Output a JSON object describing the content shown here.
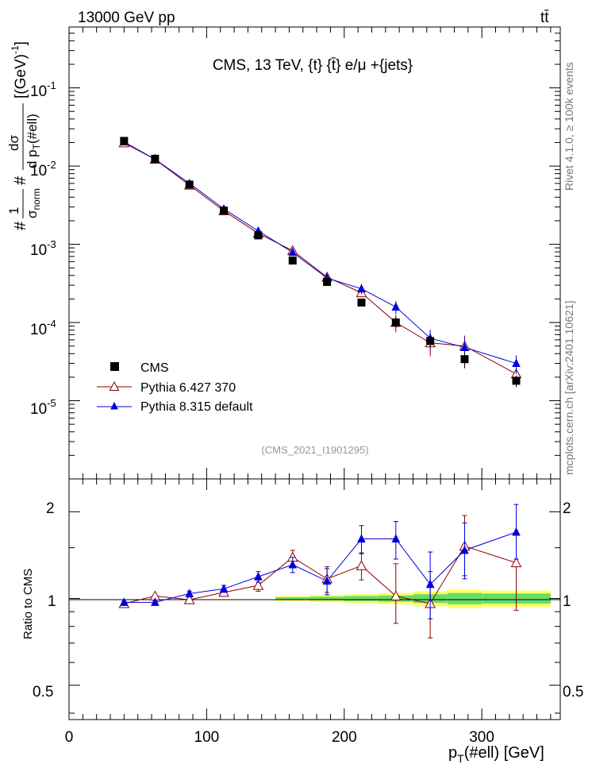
{
  "header": {
    "energy_label": "13000 GeV pp",
    "process_label": "tt̄"
  },
  "side_labels": {
    "rivet": "Rivet 4.1.0, ≥ 100k events",
    "mcplots": "mcplots.cern.ch [arXiv:2401.10621]"
  },
  "main_plot": {
    "title": "CMS, 13 TeV, {t} {t̄} e/μ +{jets}",
    "watermark": "(CMS_2021_I1901295)",
    "ylabel": {
      "hash1": "#",
      "frac1_num": "1",
      "frac1_den_main": "σ",
      "frac1_den_sub": "norm",
      "hash2": "#",
      "frac2_num": "dσ",
      "frac2_den": "d p",
      "frac2_den_sub": "T",
      "frac2_den_tail": "(#ell)",
      "unit": "[(GeV)",
      "unit_sup": "-1",
      "unit_close": "]"
    },
    "yticks": [
      {
        "base": "10",
        "exp": "-1"
      },
      {
        "base": "10",
        "exp": "-2"
      },
      {
        "base": "10",
        "exp": "-3"
      },
      {
        "base": "10",
        "exp": "-4"
      },
      {
        "base": "10",
        "exp": "-5"
      }
    ]
  },
  "ratio_plot": {
    "ylabel": "Ratio to CMS",
    "yticks": [
      "2",
      "1",
      "0.5"
    ]
  },
  "xaxis": {
    "label_main": "p",
    "label_sub": "T",
    "label_tail": "(#ell) [GeV]",
    "ticks": [
      "0",
      "100",
      "200",
      "300"
    ]
  },
  "legend": {
    "entries": [
      "CMS",
      "Pythia 6.427 370",
      "Pythia 8.315 default"
    ]
  },
  "colors": {
    "data": "#000000",
    "pythia6": "#8b0000",
    "pythia8": "#0000dd",
    "band_inner": "#66dd66",
    "band_outer": "#ffff66",
    "watermark": "#999999",
    "side_text": "#777777"
  },
  "chart_data": {
    "type": "scatter",
    "x_range": [
      0,
      357
    ],
    "y_main_range_log": [
      1e-06,
      0.6
    ],
    "y_ratio_range_log": [
      0.38,
      2.6
    ],
    "x": [
      40,
      62.5,
      87.5,
      112.5,
      137.5,
      162.5,
      187.5,
      212.5,
      237.5,
      262.5,
      287.5,
      325
    ],
    "series": [
      {
        "name": "CMS",
        "values": [
          0.021,
          0.0124,
          0.0058,
          0.0027,
          0.0013,
          0.00062,
          0.00033,
          0.00018,
          0.0001,
          5.8e-05,
          3.4e-05,
          1.8e-05
        ],
        "errors": [
          0.0006,
          0.0004,
          0.0002,
          0.0001,
          5e-05,
          3e-05,
          2e-05,
          1e-05,
          1.4e-05,
          9e-06,
          8e-06,
          3e-06
        ]
      },
      {
        "name": "Pythia 6.427 370",
        "values": [
          0.0198,
          0.0122,
          0.0057,
          0.00268,
          0.00138,
          0.00083,
          0.00038,
          0.00024,
          0.0001,
          5.5e-05,
          5e-05,
          2.2e-05
        ],
        "errors": [
          0.0002,
          0.0002,
          0.0001,
          5e-05,
          3e-05,
          3e-05,
          3e-05,
          3e-05,
          2.5e-05,
          1.8e-05,
          1.8e-05,
          7e-06
        ]
      },
      {
        "name": "Pythia 8.315 default",
        "values": [
          0.0204,
          0.0122,
          0.006,
          0.00283,
          0.00148,
          0.00079,
          0.00037,
          0.00027,
          0.000158,
          6.3e-05,
          4.8e-05,
          3e-05
        ],
        "errors": [
          0.0002,
          0.0002,
          0.0001,
          5e-05,
          4e-05,
          3e-05,
          3e-05,
          4e-05,
          3e-05,
          1.8e-05,
          1.5e-05,
          8e-06
        ]
      }
    ],
    "ratio": [
      {
        "name": "Pythia 6.427 370",
        "values": [
          0.96,
          1.02,
          0.99,
          1.05,
          1.11,
          1.39,
          1.17,
          1.3,
          1.02,
          0.96,
          1.52,
          1.33
        ],
        "err_up": [
          0.01,
          0.01,
          0.02,
          0.03,
          0.05,
          0.08,
          0.12,
          0.14,
          0.3,
          0.28,
          0.42,
          0.36
        ],
        "err_dn": [
          0.01,
          0.01,
          0.02,
          0.03,
          0.05,
          0.08,
          0.12,
          0.14,
          0.2,
          0.23,
          0.32,
          0.42
        ]
      },
      {
        "name": "Pythia 8.315 default",
        "values": [
          0.97,
          0.97,
          1.04,
          1.08,
          1.19,
          1.31,
          1.15,
          1.61,
          1.61,
          1.12,
          1.47,
          1.7
        ],
        "err_up": [
          0.01,
          0.01,
          0.02,
          0.03,
          0.05,
          0.08,
          0.12,
          0.18,
          0.24,
          0.33,
          0.36,
          0.42
        ],
        "err_dn": [
          0.01,
          0.01,
          0.02,
          0.03,
          0.05,
          0.08,
          0.12,
          0.18,
          0.24,
          0.27,
          0.3,
          0.33
        ]
      }
    ],
    "band_x": [
      150,
      175,
      200,
      225,
      250,
      275,
      300,
      350
    ],
    "band_inner_halfwidth": [
      0.01,
      0.015,
      0.02,
      0.025,
      0.035,
      0.045,
      0.04
    ],
    "band_outer_halfwidth": [
      0.02,
      0.03,
      0.035,
      0.045,
      0.06,
      0.075,
      0.065
    ]
  }
}
